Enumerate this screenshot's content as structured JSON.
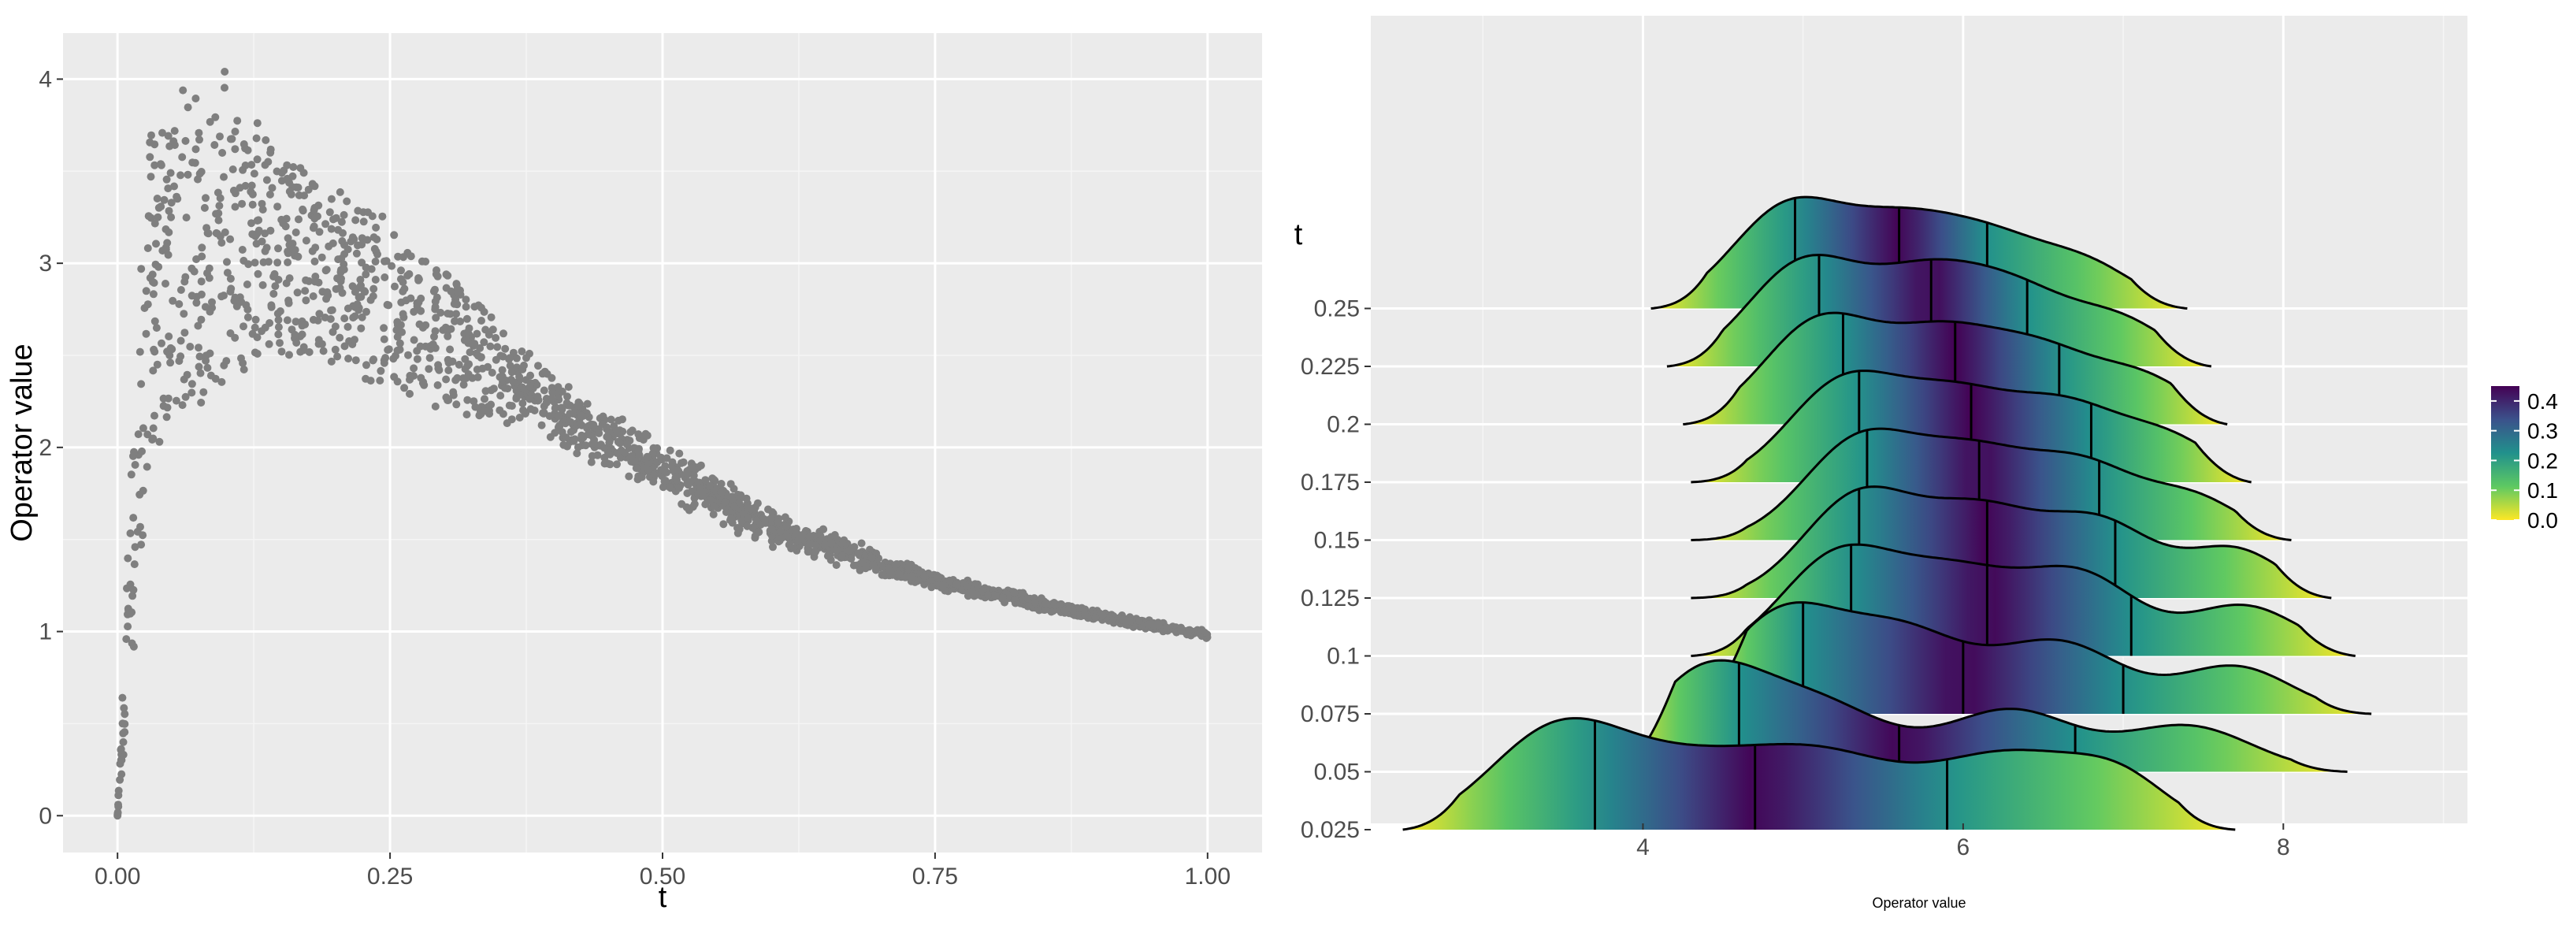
{
  "colors": {
    "panel_background": "#ebebeb",
    "grid_major": "#ffffff",
    "grid_minor": "#f5f5f5",
    "point": "#7f7f7f",
    "ridge_outline": "#000000",
    "viridis": [
      "#fde725",
      "#5ec962",
      "#21918c",
      "#3b528b",
      "#440154"
    ]
  },
  "chart_data": [
    {
      "type": "scatter",
      "xlabel": "t",
      "ylabel": "Operator value",
      "xlim": [
        -0.05,
        1.05
      ],
      "ylim": [
        -0.2,
        4.25
      ],
      "x_ticks": [
        0,
        0.25,
        0.5,
        0.75,
        1
      ],
      "x_tick_labels": [
        "0.00",
        "0.25",
        "0.50",
        "0.75",
        "1.00"
      ],
      "y_ticks": [
        0,
        1,
        2,
        3,
        4
      ],
      "y_tick_labels": [
        "0",
        "1",
        "2",
        "3",
        "4"
      ],
      "grid": true,
      "legend": "none",
      "n_points": 2000,
      "envelope": {
        "t": [
          0,
          0.01,
          0.02,
          0.03,
          0.05,
          0.06,
          0.075,
          0.1,
          0.125,
          0.15,
          0.2,
          0.25,
          0.3,
          0.4,
          0.5,
          0.6,
          0.75,
          0.9,
          1.0
        ],
        "lower": [
          0,
          0.6,
          1.2,
          1.9,
          2.2,
          2.1,
          2.2,
          2.3,
          2.45,
          2.5,
          2.45,
          2.3,
          2.2,
          2.0,
          1.72,
          1.45,
          1.22,
          1.05,
          0.96
        ],
        "upper": [
          0,
          1.5,
          2.9,
          3.7,
          3.85,
          4.0,
          3.95,
          4.05,
          3.8,
          3.6,
          3.4,
          3.25,
          2.95,
          2.4,
          2.05,
          1.68,
          1.32,
          1.12,
          1.01
        ]
      },
      "extra_points": [
        {
          "x": 0,
          "y": 0
        }
      ]
    },
    {
      "type": "ridgeline",
      "xlabel": "Operator value",
      "ylabel": "t",
      "xlim": [
        2.3,
        9.15
      ],
      "x_ticks": [
        4,
        6,
        8
      ],
      "x_tick_labels": [
        "4",
        "6",
        "8"
      ],
      "y_categories": [
        "0.025",
        "0.05",
        "0.075",
        "0.1",
        "0.125",
        "0.15",
        "0.175",
        "0.2",
        "0.225",
        "0.25"
      ],
      "scale": 5.5,
      "quantile_lines": 4,
      "grid": true,
      "legend": "right",
      "legend_ticks": [
        "0.0",
        "0.1",
        "0.2",
        "0.3",
        "0.4"
      ],
      "fill_range": [
        0.0,
        0.45
      ],
      "ridges": [
        {
          "t": "0.025",
          "range": [
            2.5,
            7.7
          ],
          "quartiles": [
            3.7,
            4.7,
            5.9
          ],
          "components": [
            {
              "m": 3.45,
              "s": 0.42,
              "w": 0.9
            },
            {
              "m": 4.3,
              "s": 0.5,
              "w": 0.6
            },
            {
              "m": 5.15,
              "s": 0.45,
              "w": 0.6
            },
            {
              "m": 6.3,
              "s": 0.5,
              "w": 0.72
            },
            {
              "m": 7.0,
              "s": 0.3,
              "w": 0.35
            }
          ]
        },
        {
          "t": "0.05",
          "range": [
            3.85,
            8.4
          ],
          "quartiles": [
            4.6,
            5.6,
            6.7
          ],
          "components": [
            {
              "m": 4.35,
              "s": 0.35,
              "w": 0.85
            },
            {
              "m": 5.05,
              "s": 0.45,
              "w": 0.7
            },
            {
              "m": 6.3,
              "s": 0.4,
              "w": 0.6
            },
            {
              "m": 7.4,
              "s": 0.4,
              "w": 0.45
            }
          ]
        },
        {
          "t": "0.075",
          "range": [
            4.3,
            8.55
          ],
          "quartiles": [
            5.0,
            6.0,
            7.0
          ],
          "components": [
            {
              "m": 4.85,
              "s": 0.35,
              "w": 0.8
            },
            {
              "m": 5.6,
              "s": 0.4,
              "w": 0.7
            },
            {
              "m": 6.6,
              "s": 0.4,
              "w": 0.6
            },
            {
              "m": 7.7,
              "s": 0.35,
              "w": 0.4
            }
          ]
        },
        {
          "t": "0.1",
          "range": [
            4.3,
            8.45
          ],
          "quartiles": [
            5.3,
            6.15,
            7.05
          ],
          "components": [
            {
              "m": 5.2,
              "s": 0.35,
              "w": 0.75
            },
            {
              "m": 5.95,
              "s": 0.4,
              "w": 0.65
            },
            {
              "m": 6.75,
              "s": 0.35,
              "w": 0.6
            },
            {
              "m": 7.75,
              "s": 0.35,
              "w": 0.4
            }
          ]
        },
        {
          "t": "0.125",
          "range": [
            4.3,
            8.3
          ],
          "quartiles": [
            5.35,
            6.15,
            6.95
          ],
          "components": [
            {
              "m": 5.35,
              "s": 0.35,
              "w": 0.75
            },
            {
              "m": 6.1,
              "s": 0.35,
              "w": 0.6
            },
            {
              "m": 6.85,
              "s": 0.35,
              "w": 0.55
            },
            {
              "m": 7.7,
              "s": 0.3,
              "w": 0.35
            }
          ]
        },
        {
          "t": "0.15",
          "range": [
            4.3,
            8.05
          ],
          "quartiles": [
            5.4,
            6.1,
            6.85
          ],
          "components": [
            {
              "m": 5.35,
              "s": 0.35,
              "w": 0.75
            },
            {
              "m": 6.05,
              "s": 0.35,
              "w": 0.6
            },
            {
              "m": 6.75,
              "s": 0.35,
              "w": 0.55
            },
            {
              "m": 7.45,
              "s": 0.3,
              "w": 0.3
            }
          ]
        },
        {
          "t": "0.175",
          "range": [
            4.3,
            7.8
          ],
          "quartiles": [
            5.35,
            6.05,
            6.8
          ],
          "components": [
            {
              "m": 5.25,
              "s": 0.35,
              "w": 0.75
            },
            {
              "m": 5.95,
              "s": 0.35,
              "w": 0.6
            },
            {
              "m": 6.65,
              "s": 0.35,
              "w": 0.55
            },
            {
              "m": 7.3,
              "s": 0.3,
              "w": 0.3
            }
          ]
        },
        {
          "t": "0.2",
          "range": [
            4.25,
            7.65
          ],
          "quartiles": [
            5.25,
            5.95,
            6.6
          ],
          "components": [
            {
              "m": 5.1,
              "s": 0.35,
              "w": 0.75
            },
            {
              "m": 5.85,
              "s": 0.35,
              "w": 0.6
            },
            {
              "m": 6.5,
              "s": 0.35,
              "w": 0.5
            },
            {
              "m": 7.15,
              "s": 0.3,
              "w": 0.3
            }
          ]
        },
        {
          "t": "0.225",
          "range": [
            4.15,
            7.55
          ],
          "quartiles": [
            5.1,
            5.8,
            6.4
          ],
          "components": [
            {
              "m": 5.0,
              "s": 0.35,
              "w": 0.75
            },
            {
              "m": 5.75,
              "s": 0.35,
              "w": 0.6
            },
            {
              "m": 6.35,
              "s": 0.35,
              "w": 0.5
            },
            {
              "m": 7.0,
              "s": 0.3,
              "w": 0.3
            }
          ]
        },
        {
          "t": "0.25",
          "range": [
            4.05,
            7.4
          ],
          "quartiles": [
            4.95,
            5.6,
            6.15
          ],
          "components": [
            {
              "m": 4.9,
              "s": 0.35,
              "w": 0.8
            },
            {
              "m": 5.6,
              "s": 0.35,
              "w": 0.6
            },
            {
              "m": 6.2,
              "s": 0.35,
              "w": 0.5
            },
            {
              "m": 6.8,
              "s": 0.3,
              "w": 0.3
            }
          ]
        }
      ]
    }
  ]
}
